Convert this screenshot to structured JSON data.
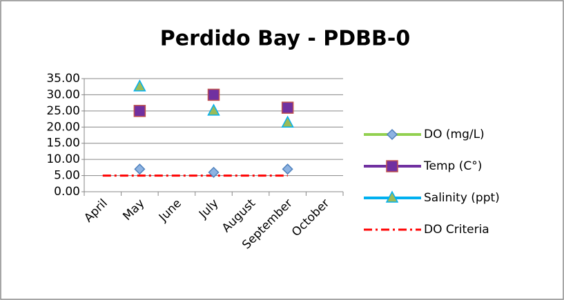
{
  "chart_data": {
    "type": "line",
    "title": "Perdido Bay - PDBB-0",
    "categories": [
      "April",
      "May",
      "June",
      "July",
      "August",
      "September",
      "October"
    ],
    "series": [
      {
        "name": "DO (mg/L)",
        "color": "#92d050",
        "marker": "diamond",
        "marker_color": "#8db3e2",
        "values": [
          null,
          7,
          null,
          6,
          null,
          7,
          null
        ]
      },
      {
        "name": "Temp (C°)",
        "color": "#7030a0",
        "marker": "square",
        "marker_color": "#c0504d",
        "values": [
          null,
          25,
          null,
          30,
          null,
          26,
          null
        ]
      },
      {
        "name": "Salinity (ppt)",
        "color": "#00b0f0",
        "marker": "triangle",
        "marker_color": "#9bbb59",
        "values": [
          null,
          32.5,
          null,
          25,
          null,
          21.3,
          null
        ]
      },
      {
        "name": "DO Criteria",
        "color": "#ff0000",
        "marker": "none",
        "dash": true,
        "values": [
          5,
          5,
          5,
          5,
          5,
          5,
          null
        ]
      }
    ],
    "ylim": [
      0,
      35
    ],
    "yticks": [
      {
        "value": 0,
        "label": "0.00"
      },
      {
        "value": 5,
        "label": "5.00"
      },
      {
        "value": 10,
        "label": "10.00"
      },
      {
        "value": 15,
        "label": "15.00"
      },
      {
        "value": 20,
        "label": "20.00"
      },
      {
        "value": 25,
        "label": "25.00"
      },
      {
        "value": 30,
        "label": "30.00"
      },
      {
        "value": 35,
        "label": "35.00"
      }
    ],
    "grid": true,
    "legend": "right"
  }
}
